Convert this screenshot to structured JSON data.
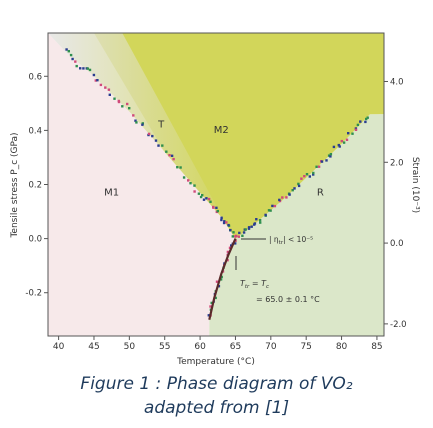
{
  "chart_data": {
    "type": "scatter",
    "title": "",
    "xlabel": "Temperature (°C)",
    "ylabel": "Tensile stress P_c (GPa)",
    "y2label": "Strain (10⁻³)",
    "xlim": [
      38.5,
      86
    ],
    "ylim": [
      -0.36,
      0.76
    ],
    "y2lim": [
      -2.3,
      5.2
    ],
    "xticks": [
      40,
      45,
      50,
      55,
      60,
      65,
      70,
      75,
      80,
      85
    ],
    "yticks": [
      -0.2,
      0.0,
      0.2,
      0.4,
      0.6
    ],
    "ytick_labels": [
      "-0.2",
      "0.0",
      "0.2",
      "0.4",
      "0.6"
    ],
    "y2ticks": [
      -2.0,
      0.0,
      2.0,
      4.0
    ],
    "y2tick_labels": [
      "-2.0",
      "0.0",
      "2.0",
      "4.0"
    ],
    "grid": false,
    "regions": [
      {
        "name": "M1",
        "color": "#f7e9ea",
        "label_pos": [
          47.5,
          0.16
        ]
      },
      {
        "name": "T",
        "color": "#dcdcdc",
        "label_pos": [
          54.5,
          0.41
        ]
      },
      {
        "name": "M2",
        "color": "#d2d65a",
        "label_pos": [
          63,
          0.39
        ]
      },
      {
        "name": "R",
        "color": "#dbe7c9",
        "label_pos": [
          77,
          0.16
        ]
      }
    ],
    "boundaries": {
      "m1_m2": [
        [
          41,
          0.69
        ],
        [
          45,
          0.6
        ],
        [
          50,
          0.47
        ],
        [
          55,
          0.32
        ],
        [
          60,
          0.17
        ],
        [
          63,
          0.08
        ],
        [
          65,
          0.0
        ]
      ],
      "m2_r": [
        [
          65,
          0.0
        ],
        [
          68,
          0.06
        ],
        [
          72,
          0.15
        ],
        [
          76,
          0.25
        ],
        [
          80,
          0.35
        ],
        [
          84,
          0.46
        ]
      ],
      "m1_r": [
        [
          65,
          0.0
        ],
        [
          64,
          -0.06
        ],
        [
          63,
          -0.13
        ],
        [
          62,
          -0.22
        ],
        [
          61.3,
          -0.3
        ]
      ]
    },
    "series_colors": [
      "#2a3d8f",
      "#d04a7a",
      "#2f8f4e",
      "#333333"
    ],
    "annotations": {
      "eta": "| η",
      "eta_sub": "tr",
      "eta_rest": "| < 10⁻⁵",
      "t_eq_left": "T",
      "t_eq_left_sub": "tr",
      "t_eq_mid": " = T",
      "t_eq_right_sub": "c",
      "value": "= 65.0 ± 0.1 °C"
    }
  },
  "caption": {
    "line1": "Figure 1 : Phase diagram of  VO₂",
    "line2": "adapted from [1]"
  }
}
